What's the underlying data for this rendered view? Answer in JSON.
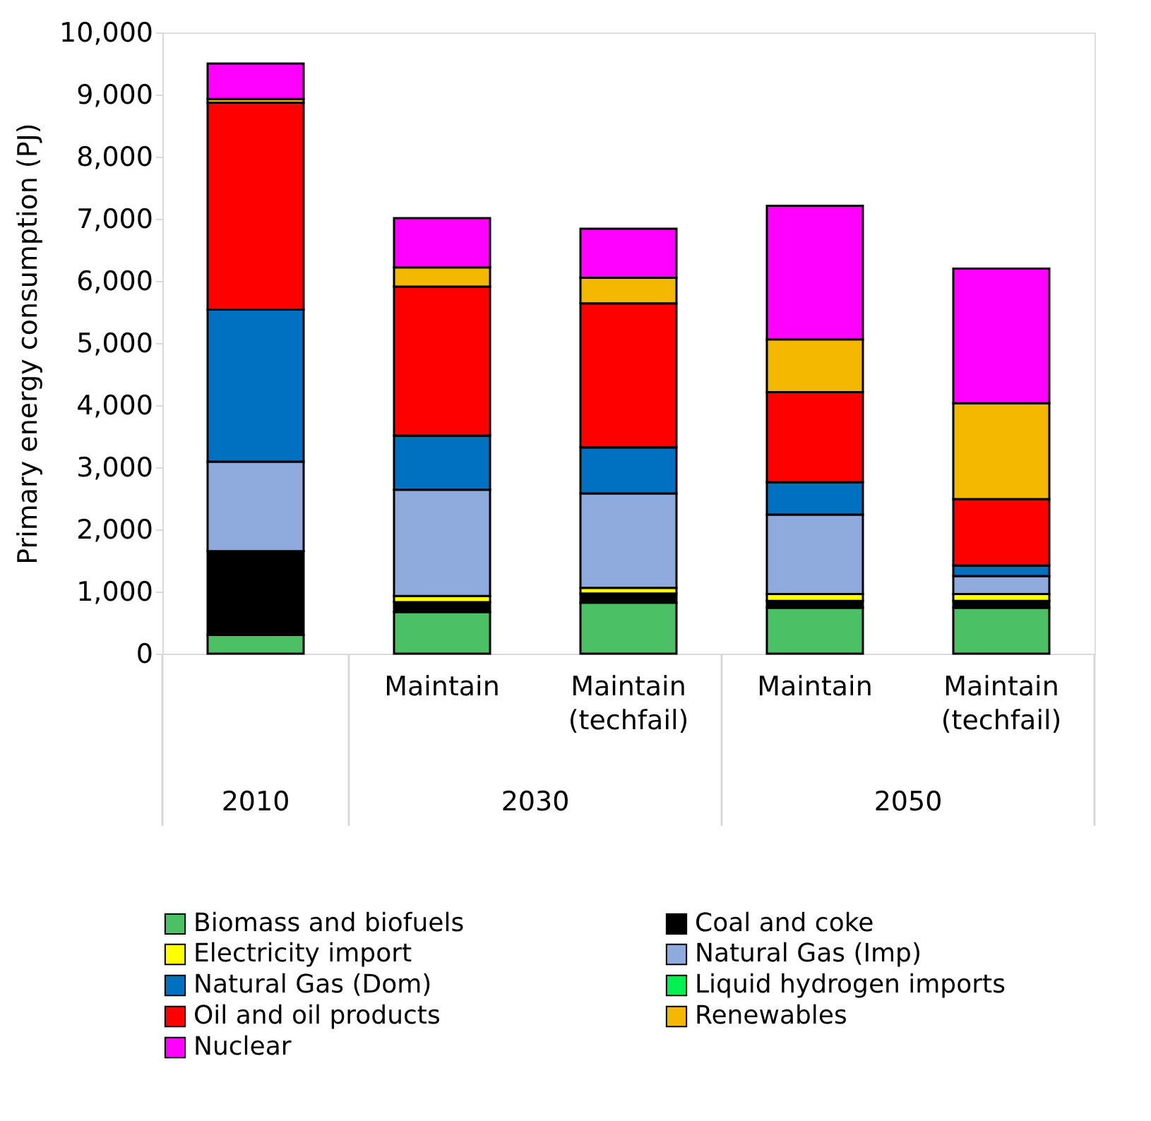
{
  "chart_data": {
    "type": "bar",
    "stacked": true,
    "ylabel": "Primary energy consumption (PJ)",
    "categories": [
      null,
      "Maintain",
      "Maintain (techfail)",
      "Maintain",
      "Maintain (techfail)"
    ],
    "annotations": [
      "2010",
      "2030",
      "2050"
    ],
    "ylim": [
      0,
      10000
    ],
    "yticks": [
      {
        "value": 0,
        "label": "0"
      },
      {
        "value": 1000,
        "label": "1,000"
      },
      {
        "value": 2000,
        "label": "2,000"
      },
      {
        "value": 3000,
        "label": "3,000"
      },
      {
        "value": 4000,
        "label": "4,000"
      },
      {
        "value": 5000,
        "label": "5,000"
      },
      {
        "value": 6000,
        "label": "6,000"
      },
      {
        "value": 7000,
        "label": "7,000"
      },
      {
        "value": 8000,
        "label": "8,000"
      },
      {
        "value": 9000,
        "label": "9,000"
      },
      {
        "value": 10000,
        "label": "10,000"
      }
    ],
    "grid": false,
    "legend": "bottom",
    "series": [
      {
        "name": "Biomass and biofuels",
        "color": "#4bc065",
        "values": [
          300,
          670,
          820,
          740,
          740
        ]
      },
      {
        "name": "Coal and coke",
        "color": "#000000",
        "values": [
          1350,
          160,
          150,
          110,
          110
        ]
      },
      {
        "name": "Electricity import",
        "color": "#ffff00",
        "values": [
          0,
          100,
          90,
          110,
          110
        ]
      },
      {
        "name": "Natural Gas (Imp)",
        "color": "#8faadc",
        "values": [
          1440,
          1710,
          1520,
          1280,
          290
        ]
      },
      {
        "name": "Natural Gas (Dom)",
        "color": "#0070c0",
        "values": [
          2450,
          870,
          740,
          520,
          170
        ]
      },
      {
        "name": "Liquid hydrogen imports",
        "color": "#00f050",
        "values": [
          0,
          0,
          0,
          0,
          0
        ]
      },
      {
        "name": "Oil and oil products",
        "color": "#ff0000",
        "values": [
          3330,
          2400,
          2320,
          1450,
          1070
        ]
      },
      {
        "name": "Renewables",
        "color": "#f5b800",
        "values": [
          60,
          310,
          410,
          850,
          1540
        ]
      },
      {
        "name": "Nuclear",
        "color": "#ff00ff",
        "values": [
          570,
          790,
          790,
          2150,
          2170
        ]
      }
    ]
  }
}
